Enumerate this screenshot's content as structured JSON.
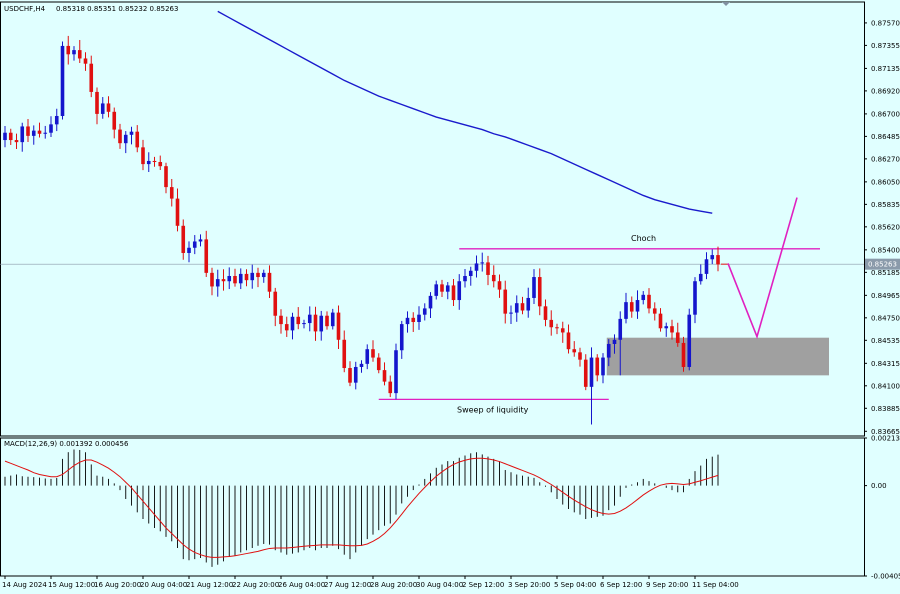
{
  "header": {
    "symbol_label": "USDCHF,H4",
    "ohlc_label": "0.85318 0.85351 0.85232 0.85263",
    "macd_label": "MACD(12,26,9) 0.001392 0.000456"
  },
  "colors": {
    "background": "#e0ffff",
    "bull": "#1515cc",
    "bear": "#e01010",
    "ma": "#1a1acc",
    "annotation": "#e020c0",
    "zone": "#a0a0a0",
    "macd_signal": "#e01010",
    "grid": "#000000"
  },
  "chart_data": [
    {
      "type": "candlestick",
      "title": "USDCHF,H4",
      "ylim": [
        0.8362,
        0.8777
      ],
      "y_ticks": [
        "0.87570",
        "0.87355",
        "0.87135",
        "0.86920",
        "0.86700",
        "0.86485",
        "0.86270",
        "0.86050",
        "0.85835",
        "0.85620",
        "0.85400",
        "0.85185",
        "0.84965",
        "0.84750",
        "0.84535",
        "0.84315",
        "0.84100",
        "0.83885",
        "0.83665"
      ],
      "current_price": "0.85263",
      "x_labels": [
        "14 Aug 2024",
        "15 Aug 12:00",
        "16 Aug 20:00",
        "20 Aug 04:00",
        "21 Aug 12:00",
        "22 Aug 20:00",
        "26 Aug 04:00",
        "27 Aug 12:00",
        "28 Aug 20:00",
        "30 Aug 04:00",
        "2 Sep 12:00",
        "3 Sep 20:00",
        "5 Sep 04:00",
        "6 Sep 12:00",
        "9 Sep 20:00",
        "11 Sep 04:00"
      ],
      "series": [
        {
          "close": [
            0.8652,
            0.8645,
            0.8643,
            0.8658,
            0.8649,
            0.8654,
            0.8651,
            0.8652,
            0.866,
            0.8668,
            0.8735,
            0.8727,
            0.8731,
            0.8723,
            0.8718,
            0.8691,
            0.867,
            0.868,
            0.8672,
            0.8655,
            0.8642,
            0.865,
            0.8653,
            0.8638,
            0.8622,
            0.8625,
            0.8624,
            0.862,
            0.86,
            0.8589,
            0.8563,
            0.8537,
            0.8542,
            0.8548,
            0.855,
            0.8518,
            0.8505,
            0.8512,
            0.851,
            0.8515,
            0.8508,
            0.8517,
            0.8511,
            0.8518,
            0.8514,
            0.8518,
            0.85,
            0.8477,
            0.8469,
            0.8463,
            0.8476,
            0.8469,
            0.847,
            0.8478,
            0.8462,
            0.8477,
            0.8467,
            0.848,
            0.8454,
            0.8427,
            0.8413,
            0.8428,
            0.8431,
            0.8445,
            0.8437,
            0.8425,
            0.8414,
            0.8403,
            0.8444,
            0.8469,
            0.8475,
            0.8471,
            0.8478,
            0.8484,
            0.8496,
            0.8507,
            0.85,
            0.8506,
            0.8492,
            0.851,
            0.8515,
            0.852,
            0.8527,
            0.8528,
            0.8516,
            0.851,
            0.8502,
            0.8479,
            0.848,
            0.8489,
            0.8482,
            0.8494,
            0.8514,
            0.8486,
            0.8473,
            0.8466,
            0.8465,
            0.8461,
            0.8445,
            0.8442,
            0.8435,
            0.8409,
            0.8437,
            0.842,
            0.8437,
            0.845,
            0.8454,
            0.8474,
            0.849,
            0.8481,
            0.8492,
            0.8497,
            0.8484,
            0.8479,
            0.8465,
            0.8467,
            0.8461,
            0.8451,
            0.8428,
            0.8478,
            0.851,
            0.8517,
            0.8531,
            0.8535,
            0.8526
          ]
        },
        {
          "name": "",
          "values": [
            0.8768,
            0.8762,
            0.8756,
            0.875,
            0.8744,
            0.8738,
            0.8732,
            0.8726,
            0.872,
            0.8714,
            0.8708,
            0.8702,
            0.8697,
            0.8692,
            0.8687,
            0.8683,
            0.8679,
            0.8675,
            0.8671,
            0.8667,
            0.8664,
            0.8661,
            0.8658,
            0.8655,
            0.8651,
            0.8648,
            0.8644,
            0.864,
            0.8636,
            0.8632,
            0.8627,
            0.8622,
            0.8617,
            0.8612,
            0.8607,
            0.8602,
            0.8597,
            0.8592,
            0.8588,
            0.8585,
            0.8582,
            0.8579,
            0.8577,
            0.8575
          ]
        }
      ],
      "annotations": [
        {
          "text": "Choch",
          "price": 0.8541
        },
        {
          "text": "Sweep of liquidity",
          "price": 0.8397
        }
      ],
      "zone": {
        "top": 0.8456,
        "bottom": 0.842
      },
      "projection": [
        0.8527,
        0.8457,
        0.859
      ]
    },
    {
      "type": "bar",
      "title": "MACD(12,26,9)",
      "ylim": [
        -0.004057,
        0.002137
      ],
      "y_ticks": [
        "0.002137",
        "0.00",
        "-0.004057"
      ],
      "series": [
        {
          "values": [
            0.0004,
            0.00045,
            0.0005,
            0.00042,
            0.0004,
            0.00038,
            0.00036,
            0.00032,
            0.0003,
            0.00034,
            0.0012,
            0.0015,
            0.00162,
            0.0016,
            0.0015,
            0.00095,
            0.00045,
            0.0004,
            0.0003,
            0.0001,
            -0.0002,
            -0.0006,
            -0.0009,
            -0.0012,
            -0.0015,
            -0.0017,
            -0.0019,
            -0.00205,
            -0.0023,
            -0.0025,
            -0.0028,
            -0.0033,
            -0.00335,
            -0.0033,
            -0.00325,
            -0.00345,
            -0.00365,
            -0.00355,
            -0.0034,
            -0.0032,
            -0.00315,
            -0.003,
            -0.0029,
            -0.0028,
            -0.0027,
            -0.00262,
            -0.00265,
            -0.0029,
            -0.003,
            -0.0031,
            -0.00305,
            -0.003,
            -0.0029,
            -0.0028,
            -0.0029,
            -0.0028,
            -0.0028,
            -0.0027,
            -0.00285,
            -0.0031,
            -0.0033,
            -0.003,
            -0.0027,
            -0.0024,
            -0.0022,
            -0.002,
            -0.0018,
            -0.0017,
            -0.0013,
            -0.0008,
            -0.0005,
            -0.0002,
            5e-05,
            0.0003,
            0.00055,
            0.0008,
            0.00095,
            0.0011,
            0.0011,
            0.00125,
            0.00135,
            0.00145,
            0.0015,
            0.0014,
            0.0013,
            0.0012,
            0.0011,
            0.0007,
            0.0006,
            0.0005,
            0.00045,
            0.0004,
            0.00035,
            0.00015,
            -5e-05,
            -0.0003,
            -0.0006,
            -0.00085,
            -0.00105,
            -0.0012,
            -0.0013,
            -0.0015,
            -0.00145,
            -0.0014,
            -0.00135,
            -0.0011,
            -0.0009,
            -0.0005,
            -0.0001,
            5e-05,
            0.00015,
            0.0003,
            0.0002,
            0.0001,
            0.0,
            -0.0001,
            -0.0002,
            -0.0003,
            -0.0003,
            0.0003,
            0.00065,
            0.0009,
            0.0012,
            0.0013,
            0.00139
          ]
        },
        {
          "values": [
            0.0011,
            0.001,
            0.0009,
            0.0008,
            0.0007,
            0.00058,
            0.0005,
            0.00045,
            0.0004,
            0.0004,
            0.0005,
            0.0007,
            0.0009,
            0.00105,
            0.00115,
            0.00115,
            0.00105,
            0.00092,
            0.00078,
            0.0006,
            0.0004,
            0.00015,
            -0.0001,
            -0.0004,
            -0.0007,
            -0.001,
            -0.0013,
            -0.0016,
            -0.0019,
            -0.00215,
            -0.0024,
            -0.00265,
            -0.00285,
            -0.003,
            -0.0031,
            -0.00318,
            -0.00322,
            -0.00322,
            -0.0032,
            -0.00318,
            -0.00315,
            -0.0031,
            -0.00305,
            -0.003,
            -0.00295,
            -0.00288,
            -0.00282,
            -0.0028,
            -0.0028,
            -0.0028,
            -0.00278,
            -0.00275,
            -0.00272,
            -0.0027,
            -0.00268,
            -0.00266,
            -0.00266,
            -0.00266,
            -0.00266,
            -0.00268,
            -0.0027,
            -0.0027,
            -0.00268,
            -0.00262,
            -0.0025,
            -0.00235,
            -0.00215,
            -0.0019,
            -0.0016,
            -0.00128,
            -0.00095,
            -0.00065,
            -0.00035,
            -8e-05,
            0.00018,
            0.00042,
            0.00062,
            0.0008,
            0.00095,
            0.00106,
            0.00114,
            0.0012,
            0.00123,
            0.00123,
            0.0012,
            0.00115,
            0.00108,
            0.00098,
            0.00088,
            0.00078,
            0.00068,
            0.00058,
            0.00048,
            0.00035,
            0.0002,
            5e-05,
            -0.00012,
            -0.0003,
            -0.00048,
            -0.00065,
            -0.0008,
            -0.00095,
            -0.00108,
            -0.00118,
            -0.00125,
            -0.00128,
            -0.00125,
            -0.00115,
            -0.001,
            -0.00082,
            -0.00062,
            -0.00042,
            -0.00025,
            -0.0001,
            2e-05,
            8e-05,
            0.0001,
            8e-05,
            5e-05,
            8e-05,
            0.00015,
            0.00022,
            0.0003,
            0.00038,
            0.00046
          ]
        }
      ]
    }
  ]
}
